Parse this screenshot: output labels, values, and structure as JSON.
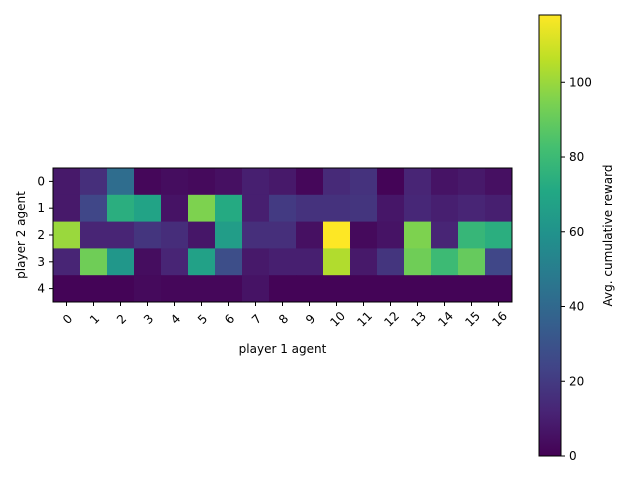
{
  "chart_data": {
    "type": "heatmap",
    "xlabel": "player 1 agent",
    "ylabel": "player 2 agent",
    "x": [
      "0",
      "1",
      "2",
      "3",
      "4",
      "5",
      "6",
      "7",
      "8",
      "9",
      "10",
      "11",
      "12",
      "13",
      "14",
      "15",
      "16"
    ],
    "y": [
      "0",
      "1",
      "2",
      "3",
      "4"
    ],
    "colormap": "viridis",
    "colorbar": {
      "label": "Avg. cumulative reward",
      "range": [
        0,
        118
      ],
      "ticks": [
        0,
        20,
        40,
        60,
        80,
        100
      ]
    },
    "values": [
      [
        8,
        16,
        42,
        2,
        4,
        3,
        5,
        10,
        8,
        2,
        14,
        17,
        1,
        12,
        6,
        8,
        5
      ],
      [
        8,
        25,
        74,
        68,
        6,
        95,
        72,
        10,
        20,
        17,
        17,
        18,
        7,
        13,
        10,
        12,
        10
      ],
      [
        100,
        12,
        12,
        18,
        15,
        7,
        65,
        16,
        16,
        5,
        118,
        3,
        6,
        95,
        12,
        78,
        74
      ],
      [
        12,
        92,
        62,
        4,
        12,
        67,
        28,
        8,
        10,
        10,
        104,
        8,
        18,
        92,
        80,
        90,
        25
      ],
      [
        1,
        1,
        1,
        3,
        2,
        2,
        2,
        6,
        1,
        1,
        1,
        1,
        1,
        1,
        1,
        1,
        1
      ]
    ]
  }
}
